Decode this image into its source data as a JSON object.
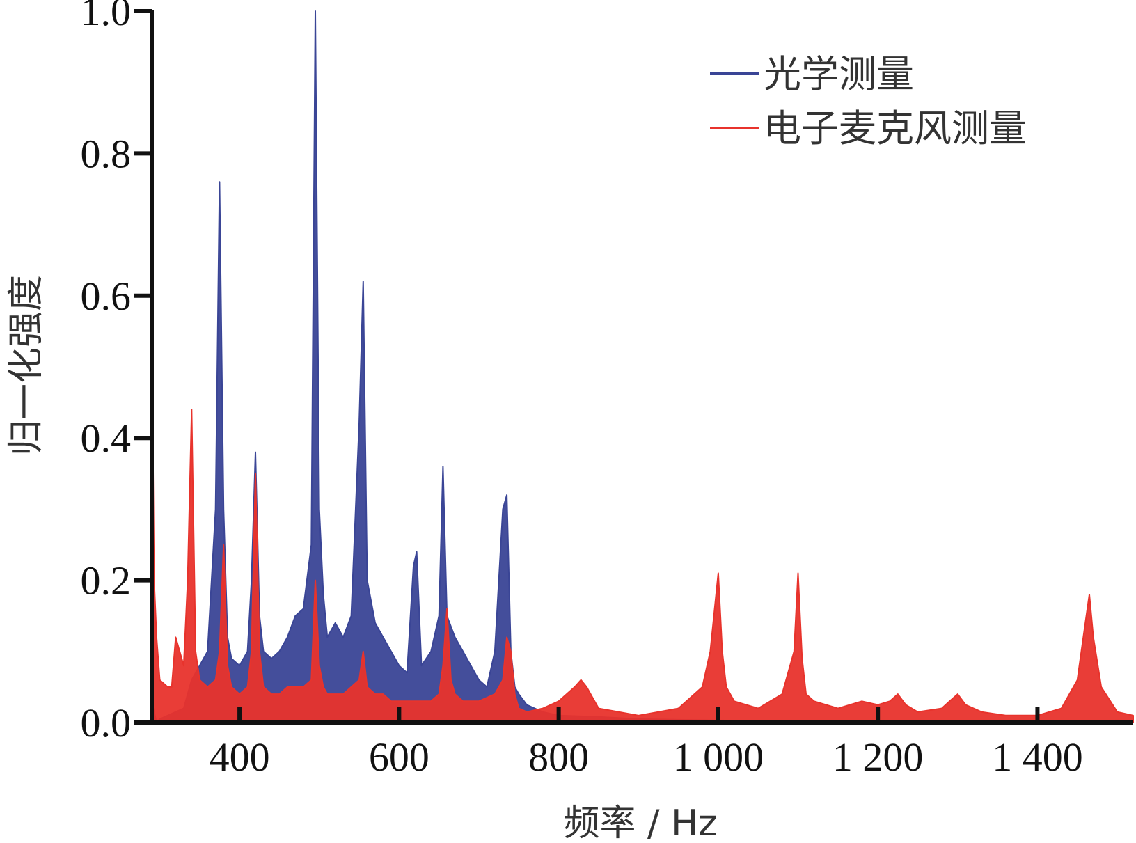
{
  "chart_data": {
    "type": "line",
    "xlabel": "频率 / Hz",
    "ylabel": "归一化强度",
    "xlim": [
      290,
      1520
    ],
    "ylim": [
      0,
      1.0
    ],
    "x_ticks": [
      {
        "value": 400,
        "label": "400"
      },
      {
        "value": 600,
        "label": "600"
      },
      {
        "value": 800,
        "label": "800"
      },
      {
        "value": 1000,
        "label": "1 000"
      },
      {
        "value": 1200,
        "label": "1 200"
      },
      {
        "value": 1400,
        "label": "1 400"
      }
    ],
    "y_ticks": [
      {
        "value": 0.0,
        "label": "0.0"
      },
      {
        "value": 0.2,
        "label": "0.2"
      },
      {
        "value": 0.4,
        "label": "0.4"
      },
      {
        "value": 0.6,
        "label": "0.6"
      },
      {
        "value": 0.8,
        "label": "0.8"
      },
      {
        "value": 1.0,
        "label": "1.0"
      }
    ],
    "grid": false,
    "legend_position": "top-right",
    "series": [
      {
        "name": "光学测量",
        "color": "#3a4596",
        "x": [
          292,
          296,
          300,
          310,
          320,
          330,
          340,
          350,
          360,
          370,
          375,
          380,
          385,
          390,
          400,
          410,
          415,
          420,
          425,
          430,
          440,
          450,
          460,
          470,
          480,
          490,
          495,
          500,
          505,
          510,
          520,
          530,
          540,
          550,
          555,
          560,
          570,
          580,
          590,
          600,
          610,
          618,
          622,
          628,
          640,
          650,
          655,
          660,
          670,
          680,
          690,
          700,
          710,
          720,
          730,
          735,
          740,
          745,
          750,
          760,
          780,
          800,
          850,
          900,
          950,
          1000,
          1100,
          1200,
          1300,
          1400,
          1460,
          1500,
          1520
        ],
        "values": [
          0.02,
          0.0,
          0.005,
          0.01,
          0.015,
          0.02,
          0.06,
          0.08,
          0.1,
          0.3,
          0.76,
          0.3,
          0.12,
          0.09,
          0.08,
          0.1,
          0.2,
          0.38,
          0.15,
          0.1,
          0.09,
          0.1,
          0.12,
          0.15,
          0.16,
          0.25,
          1.0,
          0.3,
          0.18,
          0.12,
          0.14,
          0.12,
          0.15,
          0.42,
          0.62,
          0.2,
          0.14,
          0.12,
          0.1,
          0.08,
          0.07,
          0.22,
          0.24,
          0.08,
          0.1,
          0.15,
          0.36,
          0.15,
          0.12,
          0.1,
          0.08,
          0.06,
          0.05,
          0.1,
          0.3,
          0.32,
          0.1,
          0.05,
          0.04,
          0.025,
          0.015,
          0.01,
          0.008,
          0.005,
          0.004,
          0.003,
          0.002,
          0.002,
          0.001,
          0.002,
          0.002,
          0.003,
          0.002
        ]
      },
      {
        "name": "电子麦克风测量",
        "color": "#e8332c",
        "x": [
          290,
          293,
          296,
          300,
          310,
          315,
          320,
          330,
          335,
          340,
          345,
          350,
          360,
          370,
          375,
          380,
          385,
          390,
          400,
          410,
          415,
          420,
          425,
          430,
          440,
          450,
          460,
          470,
          480,
          490,
          495,
          500,
          505,
          510,
          520,
          530,
          540,
          550,
          555,
          560,
          570,
          580,
          590,
          600,
          620,
          640,
          650,
          655,
          660,
          665,
          670,
          680,
          700,
          720,
          730,
          735,
          740,
          745,
          750,
          760,
          780,
          800,
          820,
          828,
          835,
          850,
          900,
          950,
          980,
          990,
          1000,
          1005,
          1010,
          1020,
          1050,
          1080,
          1095,
          1100,
          1105,
          1110,
          1120,
          1150,
          1180,
          1200,
          1215,
          1225,
          1235,
          1250,
          1280,
          1290,
          1300,
          1310,
          1330,
          1360,
          1400,
          1430,
          1450,
          1460,
          1465,
          1470,
          1480,
          1500,
          1520
        ],
        "values": [
          0.57,
          0.2,
          0.12,
          0.06,
          0.05,
          0.05,
          0.12,
          0.08,
          0.2,
          0.44,
          0.1,
          0.06,
          0.05,
          0.06,
          0.1,
          0.25,
          0.08,
          0.05,
          0.04,
          0.05,
          0.1,
          0.35,
          0.1,
          0.05,
          0.04,
          0.04,
          0.05,
          0.05,
          0.05,
          0.06,
          0.2,
          0.08,
          0.05,
          0.04,
          0.04,
          0.04,
          0.05,
          0.06,
          0.1,
          0.05,
          0.04,
          0.04,
          0.03,
          0.03,
          0.03,
          0.03,
          0.04,
          0.08,
          0.16,
          0.06,
          0.04,
          0.03,
          0.03,
          0.04,
          0.06,
          0.12,
          0.1,
          0.04,
          0.02,
          0.015,
          0.02,
          0.03,
          0.05,
          0.06,
          0.05,
          0.02,
          0.01,
          0.02,
          0.05,
          0.1,
          0.21,
          0.1,
          0.05,
          0.03,
          0.02,
          0.04,
          0.1,
          0.21,
          0.09,
          0.04,
          0.03,
          0.02,
          0.03,
          0.025,
          0.03,
          0.04,
          0.025,
          0.015,
          0.02,
          0.03,
          0.04,
          0.025,
          0.015,
          0.01,
          0.01,
          0.02,
          0.06,
          0.14,
          0.18,
          0.12,
          0.05,
          0.015,
          0.01
        ]
      }
    ]
  }
}
